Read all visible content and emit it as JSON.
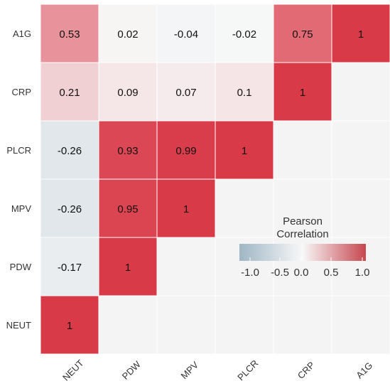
{
  "chart_data": {
    "type": "heatmap",
    "rows": [
      "A1G",
      "CRP",
      "PLCR",
      "MPV",
      "PDW",
      "NEUT"
    ],
    "columns": [
      "NEUT",
      "PDW",
      "MPV",
      "PLCR",
      "CRP",
      "A1G"
    ],
    "matrix": [
      [
        "0.53",
        "0.02",
        "-0.04",
        "-0.02",
        "0.75",
        "1"
      ],
      [
        "0.21",
        "0.09",
        "0.07",
        "0.1",
        "1",
        null
      ],
      [
        "-0.26",
        "0.93",
        "0.99",
        "1",
        null,
        null
      ],
      [
        "-0.26",
        "0.95",
        "1",
        null,
        null,
        null
      ],
      [
        "-0.17",
        "1",
        null,
        null,
        null,
        null
      ],
      [
        "1",
        null,
        null,
        null,
        null,
        null
      ]
    ],
    "legend": {
      "title_line1": "Pearson",
      "title_line2": "Correlation",
      "ticks": [
        "-1.0",
        "-0.5",
        "0.0",
        "0.5",
        "1.0"
      ],
      "range": [
        -1,
        1
      ]
    },
    "colors": {
      "negative": "#9fb6c4",
      "zero": "#f8f8f8",
      "positive": "#d93a48",
      "empty": "#f4f4f4",
      "cell_border": "#ffffff"
    }
  }
}
